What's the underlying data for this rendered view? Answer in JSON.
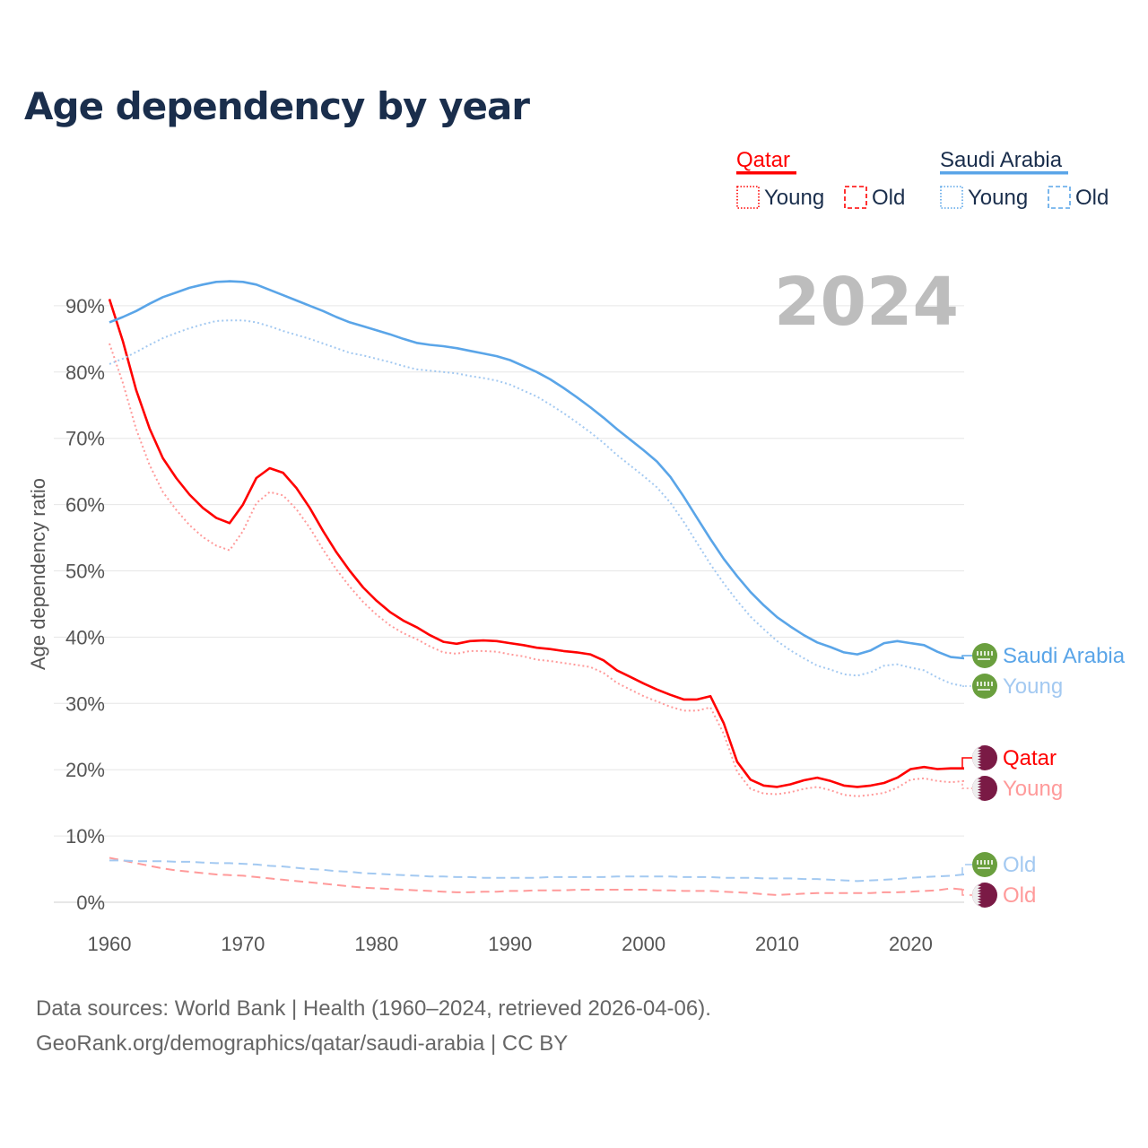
{
  "title": "Age dependency by year",
  "legend": {
    "qatar": {
      "name": "Qatar",
      "young": "Young",
      "old": "Old"
    },
    "saudi": {
      "name": "Saudi Arabia",
      "young": "Young",
      "old": "Old"
    }
  },
  "year_watermark": "2024",
  "end_labels": {
    "saudi_total": "Saudi Arabia",
    "saudi_young": "Young",
    "saudi_old": "Old",
    "qatar_total": "Qatar",
    "qatar_young": "Young",
    "qatar_old": "Old"
  },
  "footer": {
    "line1": "Data sources: World Bank | Health (1960–2024, retrieved 2026-04-06).",
    "line2": "GeoRank.org/demographics/qatar/saudi-arabia | CC BY"
  },
  "colors": {
    "qatar": "#ff0000",
    "qatar_light": "#ff9a9a",
    "saudi": "#5aa5e8",
    "saudi_light": "#a3c9f1",
    "qatar_flag": "#7a1a45",
    "saudi_flag": "#6a9f3e"
  },
  "chart_data": {
    "type": "line",
    "title": "Age dependency by year",
    "xlabel": "",
    "ylabel": "Age dependency ratio",
    "xlim": [
      1960,
      2024
    ],
    "ylim": [
      0,
      90
    ],
    "x_ticks": [
      "1960",
      "1970",
      "1980",
      "1990",
      "2000",
      "2010",
      "2020"
    ],
    "y_ticks": [
      "0%",
      "10%",
      "20%",
      "30%",
      "40%",
      "50%",
      "60%",
      "70%",
      "80%",
      "90%"
    ],
    "grid": true,
    "x_start": 1960,
    "series": [
      {
        "name": "Qatar",
        "style": "solid",
        "color": "#ff0000",
        "values": [
          91,
          84.7,
          77.3,
          71.5,
          67,
          64,
          61.5,
          59.5,
          58,
          57.2,
          60,
          64,
          65.5,
          64.8,
          62.5,
          59.5,
          56,
          52.8,
          50,
          47.5,
          45.5,
          43.8,
          42.5,
          41.5,
          40.3,
          39.3,
          39,
          39.4,
          39.5,
          39.4,
          39.1,
          38.8,
          38.4,
          38.2,
          37.9,
          37.7,
          37.4,
          36.5,
          35,
          34,
          33,
          32.1,
          31.3,
          30.6,
          30.6,
          31.1,
          27,
          21.2,
          18.5,
          17.6,
          17.4,
          17.8,
          18.4,
          18.8,
          18.3,
          17.6,
          17.4,
          17.6,
          18,
          18.8,
          20.1,
          20.4,
          20.1,
          20.2,
          20.2
        ]
      },
      {
        "name": "Qatar Young",
        "style": "dotted",
        "color": "#ff9a9a",
        "values": [
          84.3,
          78.4,
          71.4,
          66,
          61.9,
          59.2,
          56.9,
          55.1,
          53.8,
          53.1,
          56,
          60.2,
          61.9,
          61.4,
          59.3,
          56.5,
          53.2,
          50.2,
          47.6,
          45.3,
          43.4,
          41.8,
          40.6,
          39.7,
          38.6,
          37.7,
          37.5,
          37.9,
          37.9,
          37.8,
          37.4,
          37.1,
          36.6,
          36.4,
          36.1,
          35.8,
          35.5,
          34.6,
          33.1,
          32.1,
          31.1,
          30.3,
          29.5,
          28.9,
          28.9,
          29.4,
          25.4,
          19.7,
          17.1,
          16.4,
          16.3,
          16.6,
          17.1,
          17.4,
          16.9,
          16.2,
          16,
          16.2,
          16.5,
          17.3,
          18.5,
          18.7,
          18.3,
          18.1,
          18.3
        ]
      },
      {
        "name": "Qatar Old",
        "style": "dashed",
        "color": "#ff9a9a",
        "values": [
          6.7,
          6.3,
          5.9,
          5.5,
          5.1,
          4.8,
          4.6,
          4.4,
          4.2,
          4.1,
          4.0,
          3.8,
          3.6,
          3.4,
          3.2,
          3.0,
          2.8,
          2.6,
          2.4,
          2.2,
          2.1,
          2.0,
          1.9,
          1.8,
          1.7,
          1.6,
          1.5,
          1.5,
          1.6,
          1.6,
          1.7,
          1.7,
          1.8,
          1.8,
          1.8,
          1.9,
          1.9,
          1.9,
          1.9,
          1.9,
          1.9,
          1.8,
          1.8,
          1.7,
          1.7,
          1.7,
          1.6,
          1.5,
          1.4,
          1.2,
          1.1,
          1.2,
          1.3,
          1.4,
          1.4,
          1.4,
          1.4,
          1.4,
          1.5,
          1.5,
          1.6,
          1.7,
          1.8,
          2.1,
          1.9
        ]
      },
      {
        "name": "Saudi Arabia",
        "style": "solid",
        "color": "#5aa5e8",
        "values": [
          87.5,
          88.3,
          89.2,
          90.3,
          91.3,
          92,
          92.7,
          93.2,
          93.6,
          93.7,
          93.6,
          93.2,
          92.4,
          91.6,
          90.8,
          90,
          89.2,
          88.3,
          87.5,
          86.9,
          86.3,
          85.7,
          85,
          84.4,
          84.1,
          83.9,
          83.6,
          83.2,
          82.8,
          82.4,
          81.8,
          80.9,
          80,
          78.9,
          77.6,
          76.2,
          74.7,
          73.1,
          71.4,
          69.8,
          68.2,
          66.5,
          64.2,
          61.2,
          58,
          54.8,
          51.8,
          49.2,
          46.8,
          44.8,
          43,
          41.6,
          40.3,
          39.2,
          38.5,
          37.7,
          37.4,
          38,
          39.1,
          39.4,
          39.1,
          38.8,
          37.8,
          37,
          36.8
        ]
      },
      {
        "name": "Saudi Arabia Young",
        "style": "dotted",
        "color": "#a3c9f1",
        "values": [
          81.2,
          82,
          83,
          84.1,
          85.1,
          85.9,
          86.6,
          87.2,
          87.7,
          87.8,
          87.8,
          87.5,
          86.9,
          86.2,
          85.6,
          85,
          84.3,
          83.6,
          82.9,
          82.5,
          82,
          81.5,
          80.9,
          80.4,
          80.2,
          80,
          79.8,
          79.4,
          79.1,
          78.7,
          78.1,
          77.2,
          76.3,
          75.1,
          73.8,
          72.4,
          70.9,
          69.3,
          67.5,
          65.9,
          64.3,
          62.6,
          60.3,
          57.4,
          54.2,
          51,
          48.1,
          45.5,
          43.1,
          41.2,
          39.4,
          38,
          36.8,
          35.7,
          35.1,
          34.4,
          34.2,
          34.7,
          35.7,
          35.9,
          35.4,
          35,
          33.9,
          33,
          32.6
        ]
      },
      {
        "name": "Saudi Arabia Old",
        "style": "dashed",
        "color": "#a3c9f1",
        "values": [
          6.3,
          6.3,
          6.2,
          6.2,
          6.2,
          6.1,
          6.1,
          6.0,
          5.9,
          5.9,
          5.8,
          5.7,
          5.5,
          5.4,
          5.2,
          5.0,
          4.9,
          4.7,
          4.6,
          4.4,
          4.3,
          4.2,
          4.1,
          4.0,
          3.9,
          3.9,
          3.8,
          3.8,
          3.7,
          3.7,
          3.7,
          3.7,
          3.7,
          3.8,
          3.8,
          3.8,
          3.8,
          3.8,
          3.9,
          3.9,
          3.9,
          3.9,
          3.9,
          3.8,
          3.8,
          3.8,
          3.7,
          3.7,
          3.7,
          3.6,
          3.6,
          3.6,
          3.5,
          3.5,
          3.4,
          3.3,
          3.2,
          3.3,
          3.4,
          3.5,
          3.7,
          3.8,
          3.9,
          4.0,
          4.2
        ]
      }
    ]
  }
}
